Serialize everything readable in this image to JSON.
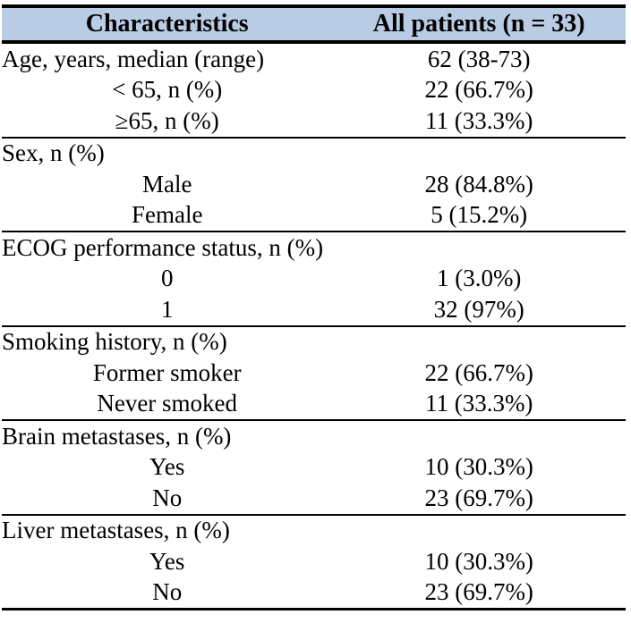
{
  "table": {
    "header_bg": "#b8cce4",
    "border_color": "#000000",
    "header": {
      "col1": "Characteristics",
      "col2": "All patients (n = 33)"
    },
    "sections": [
      {
        "rows": [
          {
            "label": "Age, years, median (range)",
            "value": "62 (38-73)",
            "indent": false
          },
          {
            "label": "< 65, n (%)",
            "value": "22 (66.7%)",
            "indent": true
          },
          {
            "label": "≥65, n (%)",
            "value": "11 (33.3%)",
            "indent": true
          }
        ]
      },
      {
        "rows": [
          {
            "label": "Sex, n (%)",
            "value": "",
            "indent": false
          },
          {
            "label": "Male",
            "value": "28 (84.8%)",
            "indent": true
          },
          {
            "label": "Female",
            "value": "5 (15.2%)",
            "indent": true
          }
        ]
      },
      {
        "rows": [
          {
            "label": "ECOG performance status, n (%)",
            "value": "",
            "indent": false
          },
          {
            "label": "0",
            "value": "1 (3.0%)",
            "indent": true
          },
          {
            "label": "1",
            "value": "32 (97%)",
            "indent": true
          }
        ]
      },
      {
        "rows": [
          {
            "label": "Smoking history, n (%)",
            "value": "",
            "indent": false
          },
          {
            "label": "Former smoker",
            "value": "22 (66.7%)",
            "indent": true
          },
          {
            "label": "Never smoked",
            "value": "11 (33.3%)",
            "indent": true
          }
        ]
      },
      {
        "rows": [
          {
            "label": "Brain metastases, n (%)",
            "value": "",
            "indent": false
          },
          {
            "label": "Yes",
            "value": "10 (30.3%)",
            "indent": true
          },
          {
            "label": "No",
            "value": "23 (69.7%)",
            "indent": true
          }
        ]
      },
      {
        "rows": [
          {
            "label": "Liver metastases, n (%)",
            "value": "",
            "indent": false
          },
          {
            "label": "Yes",
            "value": "10 (30.3%)",
            "indent": true
          },
          {
            "label": "No",
            "value": "23 (69.7%)",
            "indent": true
          }
        ]
      }
    ]
  }
}
